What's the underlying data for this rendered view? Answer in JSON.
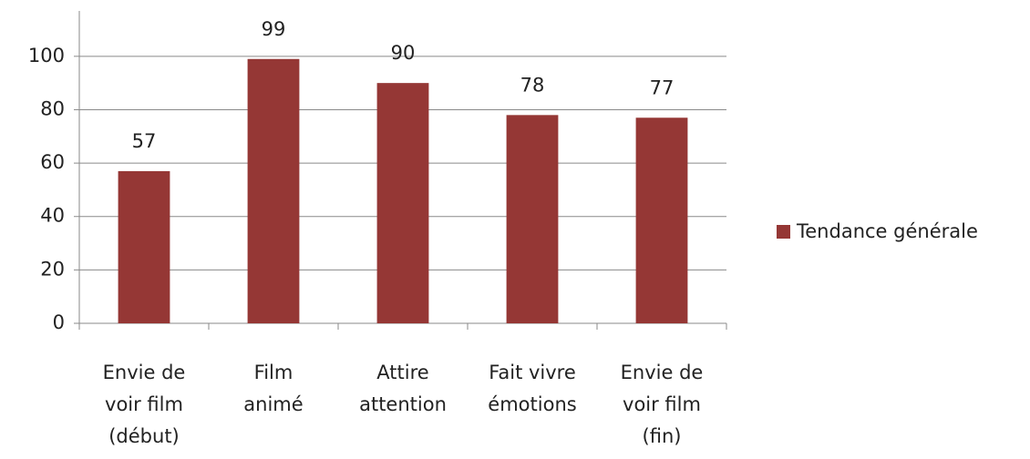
{
  "chart_data": {
    "type": "bar",
    "categories": [
      [
        "Envie de",
        "voir film",
        "(début)"
      ],
      [
        "Film",
        "animé"
      ],
      [
        "Attire",
        "attention"
      ],
      [
        "Fait vivre",
        "émotions"
      ],
      [
        "Envie de",
        "voir film",
        "(fin)"
      ]
    ],
    "series": [
      {
        "name": "Tendance générale",
        "color": "#953735",
        "values": [
          57,
          99,
          90,
          78,
          77
        ]
      }
    ],
    "ylim": [
      0,
      117
    ],
    "yticks": [
      0,
      20,
      40,
      60,
      80,
      100
    ],
    "grid": true,
    "legend": "right"
  }
}
